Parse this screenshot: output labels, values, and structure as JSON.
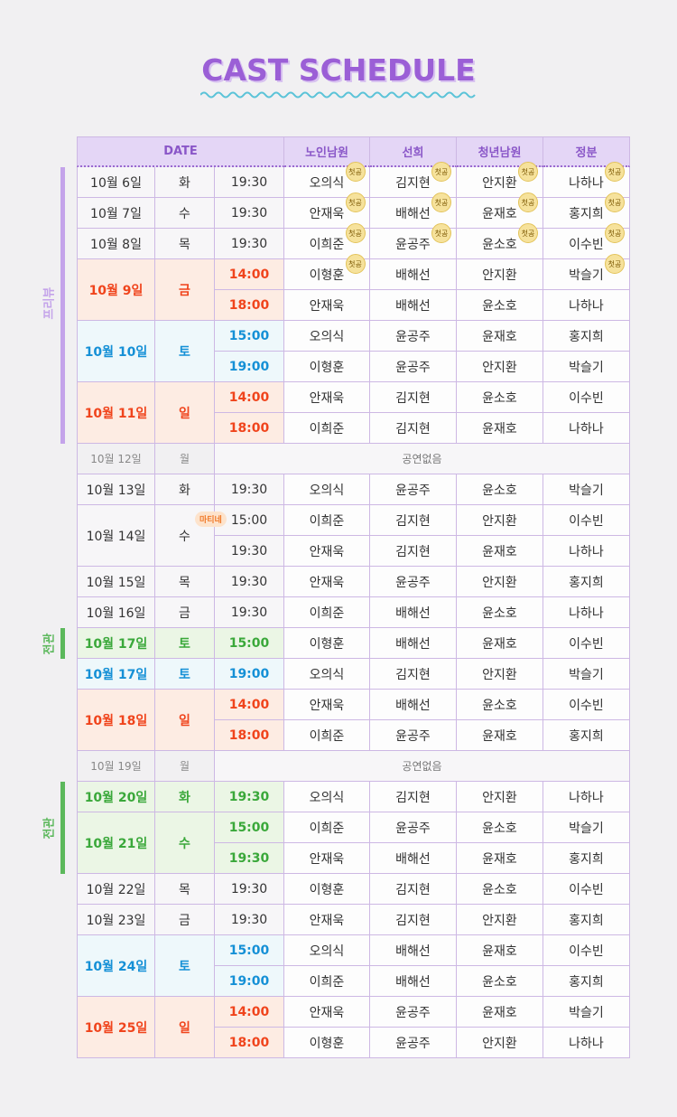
{
  "title": "CAST SCHEDULE",
  "header": {
    "date": "DATE",
    "roles": [
      "노인남원",
      "선희",
      "청년남원",
      "정분"
    ]
  },
  "schedule": [
    {
      "section": "프리뷰",
      "section_color": "#c4a3ea",
      "days": [
        {
          "date": "10월 6일",
          "day": "화",
          "theme": "plain",
          "shows": [
            {
              "time": "19:30",
              "cast": [
                {
                  "name": "오의식",
                  "badge": "첫공"
                },
                {
                  "name": "김지현",
                  "badge": "첫공"
                },
                {
                  "name": "안지환",
                  "badge": "첫공"
                },
                {
                  "name": "나하나",
                  "badge": "첫공"
                }
              ]
            }
          ]
        },
        {
          "date": "10월 7일",
          "day": "수",
          "theme": "plain",
          "shows": [
            {
              "time": "19:30",
              "cast": [
                {
                  "name": "안재욱",
                  "badge": "첫공"
                },
                {
                  "name": "배해선",
                  "badge": "첫공"
                },
                {
                  "name": "윤재호",
                  "badge": "첫공"
                },
                {
                  "name": "홍지희",
                  "badge": "첫공"
                }
              ]
            }
          ]
        },
        {
          "date": "10월 8일",
          "day": "목",
          "theme": "plain",
          "shows": [
            {
              "time": "19:30",
              "cast": [
                {
                  "name": "이희준",
                  "badge": "첫공"
                },
                {
                  "name": "윤공주",
                  "badge": "첫공"
                },
                {
                  "name": "윤소호",
                  "badge": "첫공"
                },
                {
                  "name": "이수빈",
                  "badge": "첫공"
                }
              ]
            }
          ]
        },
        {
          "date": "10월 9일",
          "day": "금",
          "theme": "red",
          "shows": [
            {
              "time": "14:00",
              "cast": [
                {
                  "name": "이형훈",
                  "badge": "첫공"
                },
                "배해선",
                "안지환",
                {
                  "name": "박슬기",
                  "badge": "첫공"
                }
              ]
            },
            {
              "time": "18:00",
              "cast": [
                "안재욱",
                "배해선",
                "윤소호",
                "나하나"
              ]
            }
          ]
        },
        {
          "date": "10월 10일",
          "day": "토",
          "theme": "blue",
          "shows": [
            {
              "time": "15:00",
              "cast": [
                "오의식",
                "윤공주",
                "윤재호",
                "홍지희"
              ]
            },
            {
              "time": "19:00",
              "cast": [
                "이형훈",
                "윤공주",
                "안지환",
                "박슬기"
              ]
            }
          ]
        },
        {
          "date": "10월 11일",
          "day": "일",
          "theme": "red",
          "shows": [
            {
              "time": "14:00",
              "cast": [
                "안재욱",
                "김지현",
                "윤소호",
                "이수빈"
              ]
            },
            {
              "time": "18:00",
              "cast": [
                "이희준",
                "김지현",
                "윤재호",
                "나하나"
              ]
            }
          ]
        }
      ]
    },
    {
      "days": [
        {
          "date": "10월 12일",
          "day": "월",
          "theme": "off",
          "note": "공연없음"
        },
        {
          "date": "10월 13일",
          "day": "화",
          "theme": "plain",
          "shows": [
            {
              "time": "19:30",
              "cast": [
                "오의식",
                "윤공주",
                "윤소호",
                "박슬기"
              ]
            }
          ]
        },
        {
          "date": "10월 14일",
          "day": "수",
          "theme": "plain",
          "shows": [
            {
              "time": "15:00",
              "badge": "마티네",
              "cast": [
                "이희준",
                "김지현",
                "안지환",
                "이수빈"
              ]
            },
            {
              "time": "19:30",
              "cast": [
                "안재욱",
                "김지현",
                "윤재호",
                "나하나"
              ]
            }
          ]
        },
        {
          "date": "10월 15일",
          "day": "목",
          "theme": "plain",
          "shows": [
            {
              "time": "19:30",
              "cast": [
                "안재욱",
                "윤공주",
                "안지환",
                "홍지희"
              ]
            }
          ]
        },
        {
          "date": "10월 16일",
          "day": "금",
          "theme": "plain",
          "shows": [
            {
              "time": "19:30",
              "cast": [
                "이희준",
                "배해선",
                "윤소호",
                "나하나"
              ]
            }
          ]
        }
      ]
    },
    {
      "section": "전관",
      "section_color": "#5cb85c",
      "days": [
        {
          "date": "10월 17일",
          "day": "토",
          "theme": "green",
          "shows": [
            {
              "time": "15:00",
              "cast": [
                "이형훈",
                "배해선",
                "윤재호",
                "이수빈"
              ]
            }
          ]
        }
      ]
    },
    {
      "days": [
        {
          "date": "10월 17일",
          "day": "토",
          "theme": "blue",
          "shows": [
            {
              "time": "19:00",
              "cast": [
                "오의식",
                "김지현",
                "안지환",
                "박슬기"
              ]
            }
          ]
        },
        {
          "date": "10월 18일",
          "day": "일",
          "theme": "red",
          "shows": [
            {
              "time": "14:00",
              "cast": [
                "안재욱",
                "배해선",
                "윤소호",
                "이수빈"
              ]
            },
            {
              "time": "18:00",
              "cast": [
                "이희준",
                "윤공주",
                "윤재호",
                "홍지희"
              ]
            }
          ]
        },
        {
          "date": "10월 19일",
          "day": "월",
          "theme": "off",
          "note": "공연없음"
        }
      ]
    },
    {
      "section": "전관",
      "section_color": "#5cb85c",
      "days": [
        {
          "date": "10월 20일",
          "day": "화",
          "theme": "green",
          "shows": [
            {
              "time": "19:30",
              "cast": [
                "오의식",
                "김지현",
                "안지환",
                "나하나"
              ]
            }
          ]
        },
        {
          "date": "10월 21일",
          "day": "수",
          "theme": "green",
          "shows": [
            {
              "time": "15:00",
              "cast": [
                "이희준",
                "윤공주",
                "윤소호",
                "박슬기"
              ]
            },
            {
              "time": "19:30",
              "cast": [
                "안재욱",
                "배해선",
                "윤재호",
                "홍지희"
              ]
            }
          ]
        }
      ]
    },
    {
      "days": [
        {
          "date": "10월 22일",
          "day": "목",
          "theme": "plain",
          "shows": [
            {
              "time": "19:30",
              "cast": [
                "이형훈",
                "김지현",
                "윤소호",
                "이수빈"
              ]
            }
          ]
        },
        {
          "date": "10월 23일",
          "day": "금",
          "theme": "plain",
          "shows": [
            {
              "time": "19:30",
              "cast": [
                "안재욱",
                "김지현",
                "안지환",
                "홍지희"
              ]
            }
          ]
        },
        {
          "date": "10월 24일",
          "day": "토",
          "theme": "blue",
          "shows": [
            {
              "time": "15:00",
              "cast": [
                "오의식",
                "배해선",
                "윤재호",
                "이수빈"
              ]
            },
            {
              "time": "19:00",
              "cast": [
                "이희준",
                "배해선",
                "윤소호",
                "홍지희"
              ]
            }
          ]
        },
        {
          "date": "10월 25일",
          "day": "일",
          "theme": "red",
          "shows": [
            {
              "time": "14:00",
              "cast": [
                "안재욱",
                "윤공주",
                "윤재호",
                "박슬기"
              ]
            },
            {
              "time": "18:00",
              "cast": [
                "이형훈",
                "윤공주",
                "안지환",
                "나하나"
              ]
            }
          ]
        }
      ]
    }
  ]
}
